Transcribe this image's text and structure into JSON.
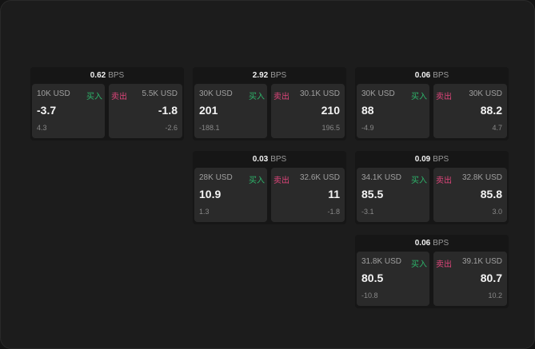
{
  "unit": "BPS",
  "buy_label": "买入",
  "sell_label": "卖出",
  "colors": {
    "buy": "#2db56b",
    "sell": "#e0457b"
  },
  "cards": [
    {
      "spread": "0.62",
      "bid_size": "10K USD",
      "bid": "-3.7",
      "bid_change": "4.3",
      "ask_size": "5.5K USD",
      "ask": "-1.8",
      "ask_change": "-2.6"
    },
    {
      "spread": "2.92",
      "bid_size": "30K USD",
      "bid": "201",
      "bid_change": "-188.1",
      "ask_size": "30.1K USD",
      "ask": "210",
      "ask_change": "196.5"
    },
    {
      "spread": "0.06",
      "bid_size": "30K USD",
      "bid": "88",
      "bid_change": "-4.9",
      "ask_size": "30K USD",
      "ask": "88.2",
      "ask_change": "4.7"
    },
    {
      "spread": "0.03",
      "bid_size": "28K USD",
      "bid": "10.9",
      "bid_change": "1.3",
      "ask_size": "32.6K USD",
      "ask": "11",
      "ask_change": "-1.8"
    },
    {
      "spread": "0.09",
      "bid_size": "34.1K USD",
      "bid": "85.5",
      "bid_change": "-3.1",
      "ask_size": "32.8K USD",
      "ask": "85.8",
      "ask_change": "3.0"
    },
    {
      "spread": "0.06",
      "bid_size": "31.8K USD",
      "bid": "80.5",
      "bid_change": "-10.8",
      "ask_size": "39.1K USD",
      "ask": "80.7",
      "ask_change": "10.2"
    }
  ]
}
